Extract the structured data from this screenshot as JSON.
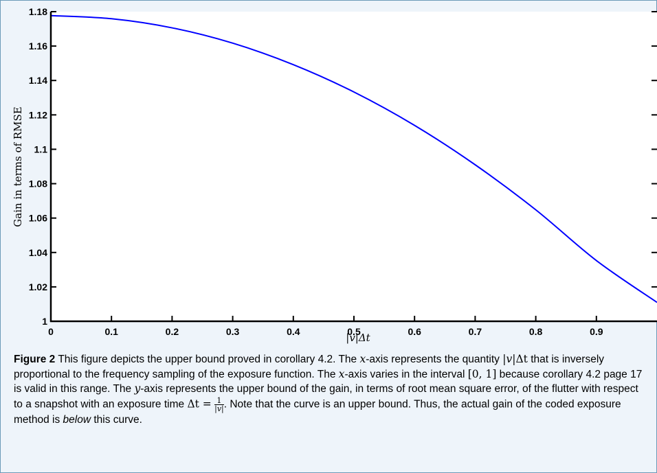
{
  "colors": {
    "frame_border": "#6a9ab8",
    "background": "#eef4fa",
    "plot_background": "#ffffff",
    "curve": "#0000ff",
    "axis": "#000000"
  },
  "chart_data": {
    "type": "line",
    "title": "",
    "xlabel": "|v|Δt",
    "ylabel": "Gain in terms of RMSE",
    "xlim": [
      0,
      1
    ],
    "ylim": [
      1,
      1.18
    ],
    "xticks": [
      0,
      0.1,
      0.2,
      0.3,
      0.4,
      0.5,
      0.6,
      0.7,
      0.8,
      0.9
    ],
    "xtick_labels": [
      "0",
      "0.1",
      "0.2",
      "0.3",
      "0.4",
      "0.5",
      "0.6",
      "0.7",
      "0.8",
      "0.9"
    ],
    "yticks": [
      1,
      1.02,
      1.04,
      1.06,
      1.08,
      1.1,
      1.12,
      1.14,
      1.16,
      1.18
    ],
    "ytick_labels": [
      "1",
      "1.02",
      "1.04",
      "1.06",
      "1.08",
      "1.1",
      "1.12",
      "1.14",
      "1.16",
      "1.18"
    ],
    "grid": false,
    "legend": "none",
    "series": [
      {
        "x": [
          0,
          0.1,
          0.2,
          0.3,
          0.4,
          0.5,
          0.6,
          0.7,
          0.8,
          0.9,
          1.0
        ],
        "y": [
          1.1777,
          1.1759,
          1.1706,
          1.1617,
          1.1492,
          1.1333,
          1.1139,
          1.091,
          1.0648,
          1.0353,
          1.011
        ]
      }
    ]
  },
  "caption": {
    "figure_label": "Figure 2",
    "s1": " This figure depicts the upper bound proved in corollary 4.2. The ",
    "x_var": "x",
    "s2": "-axis represents the quantity ",
    "q_v": "|v|",
    "q_dt": "Δt",
    "s3": " that is inversely proportional to the frequency sampling of the exposure function. The ",
    "x_var2": "x",
    "s4": "-axis varies in the interval ",
    "interval": "[0, 1]",
    "s5": " because corollary 4.2 page 17 is valid in this range. The ",
    "y_var": "y",
    "s6": "-axis represents the upper bound of the gain, in terms of root mean square error, of the flutter with respect to a snapshot with an exposure time ",
    "dt_eq": "Δt =",
    "frac_num": "1",
    "frac_den": "|v|",
    "s7": ". Note that the curve is an upper bound. Thus, the actual gain of the coded exposure method is ",
    "emph": "below",
    "s8": " this curve."
  }
}
